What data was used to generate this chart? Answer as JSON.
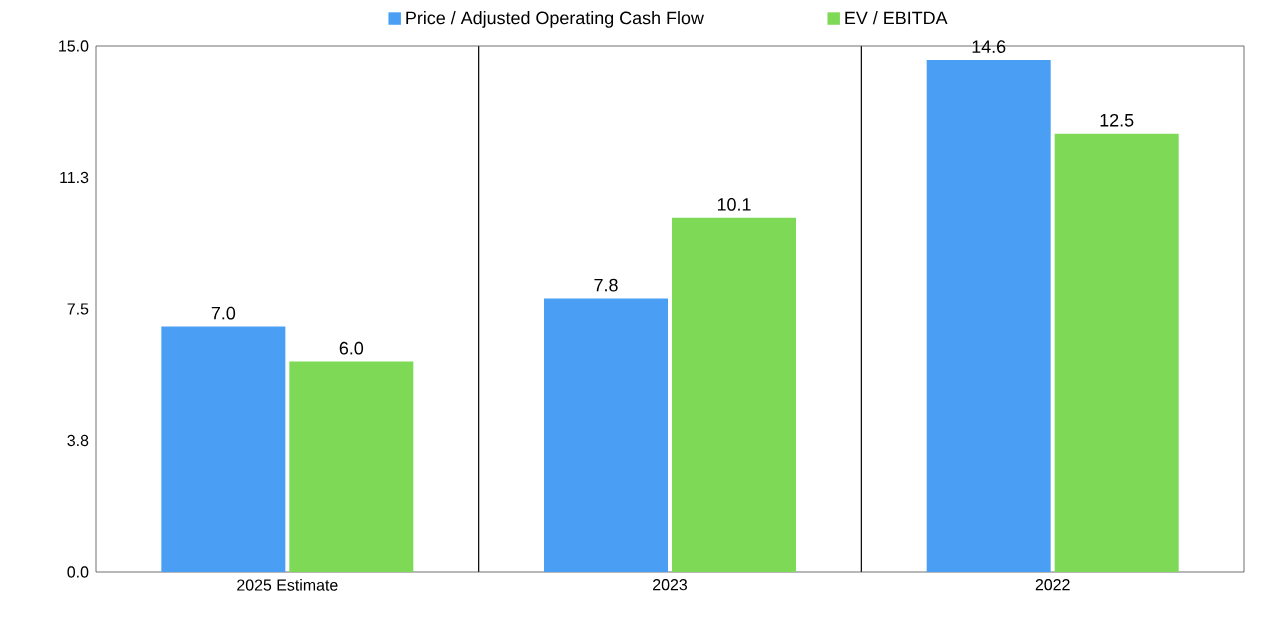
{
  "chart_data": {
    "type": "bar",
    "categories": [
      "2025 Estimate",
      "2023",
      "2022"
    ],
    "series": [
      {
        "name": "Price / Adjusted Operating Cash Flow",
        "color": "#4a9ff5",
        "values": [
          7.0,
          7.8,
          14.6
        ],
        "value_labels": [
          "7.0",
          "7.8",
          "14.6"
        ]
      },
      {
        "name": "EV / EBITDA",
        "color": "#7ed957",
        "values": [
          6.0,
          10.1,
          12.5
        ],
        "value_labels": [
          "6.0",
          "10.1",
          "12.5"
        ]
      }
    ],
    "ylim": [
      0,
      15
    ],
    "yticks": [
      {
        "value": 0,
        "label": "0.0"
      },
      {
        "value": 3.75,
        "label": "3.8"
      },
      {
        "value": 7.5,
        "label": "7.5"
      },
      {
        "value": 11.25,
        "label": "11.3"
      },
      {
        "value": 15,
        "label": "15.0"
      }
    ],
    "grid": "x",
    "legend": "top"
  }
}
